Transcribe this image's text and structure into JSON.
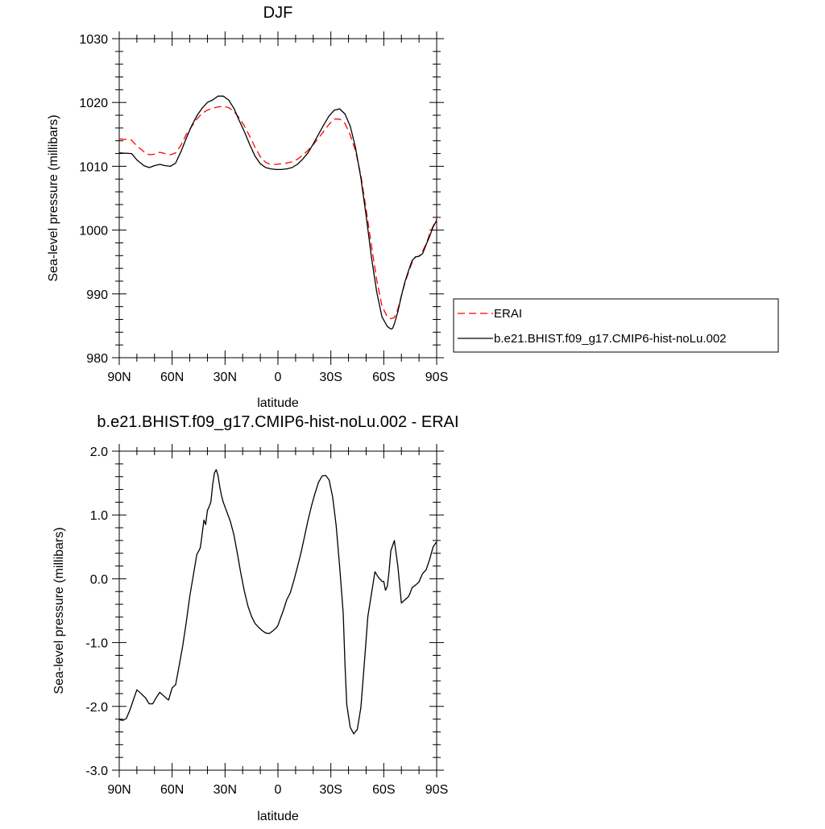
{
  "chart_data": [
    {
      "type": "line",
      "title": "DJF",
      "xlabel": "latitude",
      "ylabel": "Sea-level pressure (millibars)",
      "xlim": [
        -90,
        90
      ],
      "ylim": [
        980,
        1030
      ],
      "x_ticks": [
        {
          "value": -90,
          "label": "90N"
        },
        {
          "value": -60,
          "label": "60N"
        },
        {
          "value": -30,
          "label": "30N"
        },
        {
          "value": 0,
          "label": "0"
        },
        {
          "value": 30,
          "label": "30S"
        },
        {
          "value": 60,
          "label": "60S"
        },
        {
          "value": 90,
          "label": "90S"
        }
      ],
      "y_ticks": [
        {
          "value": 980,
          "label": "980"
        },
        {
          "value": 990,
          "label": "990"
        },
        {
          "value": 1000,
          "label": "1000"
        },
        {
          "value": 1010,
          "label": "1010"
        },
        {
          "value": 1020,
          "label": "1020"
        },
        {
          "value": 1030,
          "label": "1030"
        }
      ],
      "grid": false,
      "legend_position": "right",
      "series": [
        {
          "name": "ERAI",
          "color": "#ff0000",
          "dash": "dashed",
          "x": [
            -90,
            -83,
            -80,
            -76,
            -73,
            -70,
            -67,
            -64,
            -61,
            -58,
            -55,
            -52,
            -49,
            -46,
            -43,
            -40,
            -37,
            -34,
            -31,
            -28,
            -25,
            -22,
            -19,
            -16,
            -13,
            -10,
            -7,
            -4,
            -1,
            2,
            5,
            8,
            11,
            14,
            17,
            20,
            23,
            26,
            29,
            32,
            35,
            38,
            41,
            44,
            47,
            50,
            53,
            56,
            59,
            62,
            64,
            65,
            66,
            68,
            70,
            72,
            74,
            76,
            78,
            80,
            82,
            84,
            86,
            88,
            90
          ],
          "y": [
            1014.3,
            1014.1,
            1013.2,
            1012.3,
            1011.8,
            1011.9,
            1012.2,
            1012.0,
            1011.8,
            1012.1,
            1013.3,
            1015.0,
            1016.2,
            1017.4,
            1018.3,
            1018.8,
            1019.1,
            1019.3,
            1019.4,
            1019.2,
            1018.6,
            1017.6,
            1016.3,
            1014.7,
            1013.0,
            1011.5,
            1010.6,
            1010.3,
            1010.3,
            1010.4,
            1010.5,
            1010.7,
            1011.1,
            1011.7,
            1012.5,
            1013.4,
            1014.4,
            1015.5,
            1016.6,
            1017.4,
            1017.4,
            1016.7,
            1014.9,
            1012.4,
            1008.6,
            1003.3,
            997.6,
            992.2,
            988.1,
            986.4,
            986.1,
            986.2,
            986.3,
            987.6,
            989.7,
            991.7,
            993.4,
            994.9,
            995.8,
            995.9,
            996.7,
            997.8,
            999.4,
            1000.6,
            1001.8
          ]
        },
        {
          "name": "b.e21.BHIST.f09_g17.CMIP6-hist-noLu.002",
          "color": "#000000",
          "dash": "solid",
          "x": [
            -90,
            -83,
            -80,
            -76,
            -73,
            -70,
            -67,
            -64,
            -61,
            -58,
            -55,
            -52,
            -49,
            -46,
            -43,
            -40,
            -37,
            -34,
            -31,
            -28,
            -25,
            -22,
            -19,
            -16,
            -13,
            -10,
            -7,
            -4,
            -1,
            2,
            5,
            8,
            11,
            14,
            17,
            20,
            23,
            26,
            29,
            32,
            35,
            38,
            41,
            44,
            47,
            50,
            53,
            56,
            59,
            62,
            64,
            65,
            66,
            68,
            70,
            72,
            74,
            76,
            78,
            80,
            82,
            84,
            86,
            88,
            90
          ],
          "y": [
            1012.1,
            1012.0,
            1011.0,
            1010.1,
            1009.8,
            1010.1,
            1010.3,
            1010.1,
            1010.0,
            1010.5,
            1012.3,
            1014.4,
            1016.3,
            1017.9,
            1019.1,
            1020.0,
            1020.4,
            1021.0,
            1021.0,
            1020.4,
            1019.1,
            1017.2,
            1015.4,
            1013.4,
            1011.6,
            1010.4,
            1009.8,
            1009.6,
            1009.5,
            1009.5,
            1009.6,
            1009.8,
            1010.3,
            1011.1,
            1012.1,
            1013.5,
            1015.0,
            1016.5,
            1017.9,
            1018.8,
            1019.0,
            1018.2,
            1016.3,
            1012.9,
            1008.2,
            1002.3,
            995.8,
            990.3,
            986.4,
            984.9,
            984.5,
            984.6,
            985.3,
            987.2,
            989.7,
            991.9,
            993.6,
            995.2,
            995.8,
            995.9,
            996.3,
            997.7,
            999.0,
            1000.5,
            1001.5
          ]
        }
      ]
    },
    {
      "type": "line",
      "title": "b.e21.BHIST.f09_g17.CMIP6-hist-noLu.002 - ERAI",
      "xlabel": "latitude",
      "ylabel": "Sea-level pressure (millibars)",
      "xlim": [
        -90,
        90
      ],
      "ylim": [
        -3.0,
        2.0
      ],
      "x_ticks": [
        {
          "value": -90,
          "label": "90N"
        },
        {
          "value": -60,
          "label": "60N"
        },
        {
          "value": -30,
          "label": "30N"
        },
        {
          "value": 0,
          "label": "0"
        },
        {
          "value": 30,
          "label": "30S"
        },
        {
          "value": 60,
          "label": "60S"
        },
        {
          "value": 90,
          "label": "90S"
        }
      ],
      "y_ticks": [
        {
          "value": -3.0,
          "label": "-3.0"
        },
        {
          "value": -2.0,
          "label": "-2.0"
        },
        {
          "value": -1.0,
          "label": "-1.0"
        },
        {
          "value": 0.0,
          "label": "0.0"
        },
        {
          "value": 1.0,
          "label": "1.0"
        },
        {
          "value": 2.0,
          "label": "2.0"
        }
      ],
      "grid": false,
      "series": [
        {
          "color": "#000000",
          "dash": "solid",
          "x": [
            -90,
            -88,
            -86,
            -84,
            -82,
            -80,
            -78,
            -75,
            -73,
            -71,
            -69,
            -67,
            -65,
            -63,
            -62,
            -61,
            -60,
            -58,
            -56,
            -54,
            -52,
            -50,
            -48,
            -46,
            -45,
            -44,
            -43,
            -42,
            -41,
            -40,
            -39,
            -38,
            -37,
            -36,
            -35,
            -34,
            -33,
            -32,
            -31,
            -29,
            -27,
            -25,
            -23,
            -21,
            -19,
            -17,
            -15,
            -13,
            -11,
            -9,
            -7,
            -5,
            -3,
            -1,
            0,
            1,
            3,
            5,
            7,
            9,
            11,
            13,
            15,
            17,
            19,
            21,
            23,
            25,
            27,
            29,
            31,
            33,
            35,
            37,
            38,
            39,
            41,
            43,
            45,
            47,
            49,
            51,
            53,
            55,
            57,
            59,
            60,
            61,
            62,
            63,
            64,
            66,
            68,
            70,
            72,
            74,
            75,
            76,
            78,
            80,
            81,
            82,
            84,
            86,
            88,
            90
          ],
          "y": [
            -2.21,
            -2.22,
            -2.19,
            -2.06,
            -1.9,
            -1.74,
            -1.79,
            -1.87,
            -1.96,
            -1.96,
            -1.86,
            -1.78,
            -1.83,
            -1.88,
            -1.9,
            -1.8,
            -1.71,
            -1.66,
            -1.36,
            -1.05,
            -0.68,
            -0.27,
            0.05,
            0.38,
            0.43,
            0.49,
            0.7,
            0.92,
            0.85,
            1.07,
            1.13,
            1.21,
            1.48,
            1.66,
            1.71,
            1.62,
            1.44,
            1.3,
            1.2,
            1.05,
            0.9,
            0.69,
            0.39,
            0.08,
            -0.2,
            -0.43,
            -0.59,
            -0.7,
            -0.76,
            -0.81,
            -0.85,
            -0.86,
            -0.82,
            -0.77,
            -0.73,
            -0.65,
            -0.5,
            -0.33,
            -0.22,
            -0.03,
            0.18,
            0.4,
            0.65,
            0.91,
            1.14,
            1.34,
            1.51,
            1.61,
            1.62,
            1.55,
            1.28,
            0.84,
            0.19,
            -0.54,
            -1.34,
            -1.97,
            -2.33,
            -2.43,
            -2.36,
            -2.02,
            -1.31,
            -0.59,
            -0.24,
            0.11,
            0.02,
            -0.04,
            -0.04,
            -0.18,
            -0.12,
            0.11,
            0.44,
            0.6,
            0.2,
            -0.38,
            -0.33,
            -0.28,
            -0.22,
            -0.14,
            -0.1,
            -0.05,
            0.02,
            0.08,
            0.14,
            0.3,
            0.5,
            0.58
          ]
        }
      ]
    }
  ]
}
